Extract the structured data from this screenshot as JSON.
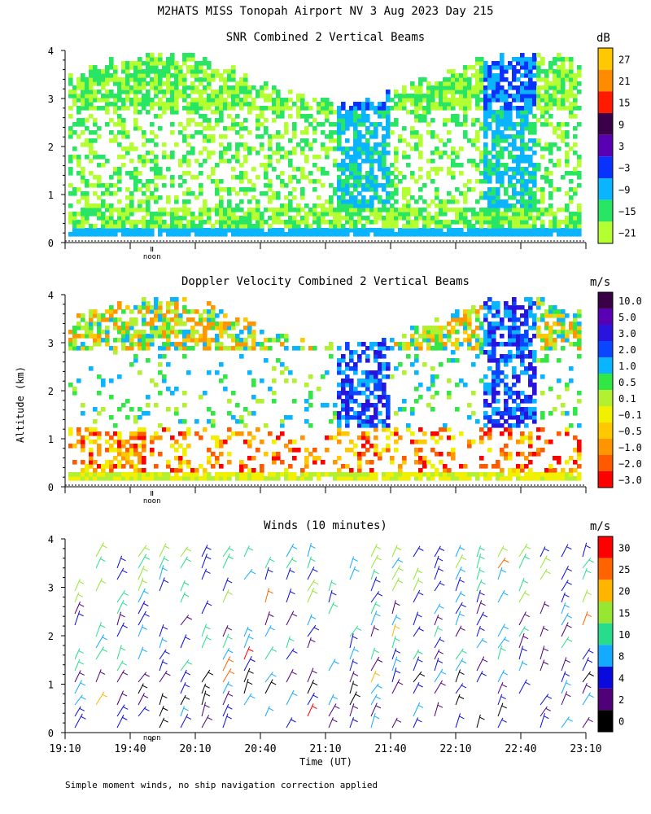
{
  "page": {
    "title": "M2HATS MISS Tonopah Airport NV   3 Aug 2023 Day 215",
    "y_axis_label": "Altitude (km)",
    "x_axis_label": "Time (UT)",
    "footnote": "Simple moment winds, no ship navigation correction applied",
    "noon_label": "noon"
  },
  "chart_data": [
    {
      "type": "heatmap",
      "title": "SNR Combined 2 Vertical Beams",
      "unit": "dB",
      "ylim": [
        0,
        4
      ],
      "yticks": [
        "0",
        "1",
        "2",
        "3",
        "4"
      ],
      "xlim": [
        "19:10",
        "23:10"
      ],
      "colorbar": {
        "labels": [
          "27",
          "21",
          "15",
          "9",
          "3",
          "−3",
          "−9",
          "−15",
          "−21"
        ],
        "colors": [
          "#ffc800",
          "#ff8c00",
          "#ff1a00",
          "#3a004a",
          "#5a00b4",
          "#0a32ff",
          "#0ab4ff",
          "#28e664",
          "#b4ff32"
        ]
      }
    },
    {
      "type": "heatmap",
      "title": "Doppler Velocity Combined 2 Vertical Beams",
      "unit": "m/s",
      "ylim": [
        0,
        4
      ],
      "yticks": [
        "0",
        "1",
        "2",
        "3",
        "4"
      ],
      "xlim": [
        "19:10",
        "23:10"
      ],
      "colorbar": {
        "labels": [
          "10.0",
          "5.0",
          "3.0",
          "2.0",
          "1.0",
          "0.5",
          "0.1",
          "−0.1",
          "−0.5",
          "−1.0",
          "−2.0",
          "−3.0"
        ],
        "colors": [
          "#3a0046",
          "#5a00b4",
          "#2814dc",
          "#0a46ff",
          "#0ab4ff",
          "#32e646",
          "#b4f032",
          "#f0f000",
          "#ffc800",
          "#ff9600",
          "#ff5a00",
          "#ff0000"
        ]
      }
    },
    {
      "type": "scatter",
      "title": "Winds (10 minutes)",
      "unit": "m/s",
      "ylim": [
        0,
        4
      ],
      "yticks": [
        "0",
        "1",
        "2",
        "3",
        "4"
      ],
      "xlim": [
        "19:10",
        "23:10"
      ],
      "xticks": [
        "19:10",
        "19:40",
        "20:10",
        "20:40",
        "21:10",
        "21:40",
        "22:10",
        "22:40",
        "23:10"
      ],
      "colorbar": {
        "labels": [
          "30",
          "25",
          "20",
          "15",
          "10",
          "8",
          "4",
          "2",
          "0"
        ],
        "colors": [
          "#ff0000",
          "#ff6400",
          "#ffb400",
          "#96e632",
          "#28dc8c",
          "#14aaff",
          "#0a0adc",
          "#500078",
          "#000000"
        ]
      }
    }
  ]
}
